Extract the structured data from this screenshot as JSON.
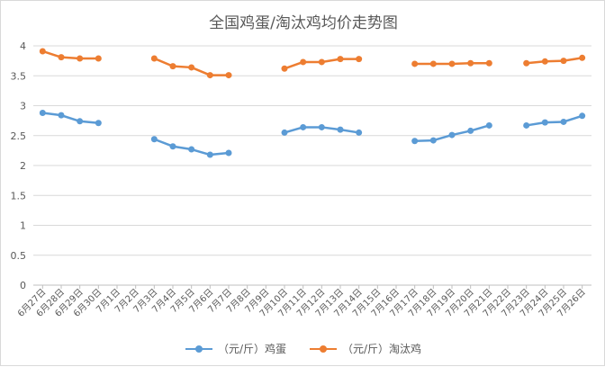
{
  "chart_data": {
    "type": "line",
    "title": "全国鸡蛋/淘汰鸡均价走势图",
    "xlabel": "",
    "ylabel": "",
    "ylim": [
      0,
      4
    ],
    "yticks": [
      "0",
      "0.5",
      "1",
      "1.5",
      "2",
      "2.5",
      "3",
      "3.5",
      "4"
    ],
    "grid": true,
    "legend_position": "bottom",
    "categories": [
      "6月27日",
      "6月28日",
      "6月29日",
      "6月30日",
      "7月1日",
      "7月2日",
      "7月3日",
      "7月4日",
      "7月5日",
      "7月6日",
      "7月7日",
      "7月8日",
      "7月9日",
      "7月10日",
      "7月11日",
      "7月12日",
      "7月13日",
      "7月14日",
      "7月15日",
      "7月16日",
      "7月17日",
      "7月18日",
      "7月19日",
      "7月20日",
      "7月21日",
      "7月22日",
      "7月23日",
      "7月24日",
      "7月25日",
      "7月26日"
    ],
    "series": [
      {
        "name": "（元/斤）鸡蛋",
        "color": "#5b9bd5",
        "values": [
          2.88,
          2.84,
          2.74,
          2.71,
          null,
          null,
          2.44,
          2.32,
          2.27,
          2.18,
          2.21,
          null,
          null,
          2.55,
          2.64,
          2.64,
          2.6,
          2.55,
          null,
          null,
          2.41,
          2.42,
          2.51,
          2.58,
          2.67,
          null,
          2.67,
          2.72,
          2.73,
          2.83
        ]
      },
      {
        "name": "（元/斤）淘汰鸡",
        "color": "#ed7d31",
        "values": [
          3.91,
          3.81,
          3.79,
          3.79,
          null,
          null,
          3.79,
          3.66,
          3.64,
          3.51,
          3.51,
          null,
          null,
          3.62,
          3.73,
          3.73,
          3.78,
          3.78,
          null,
          null,
          3.7,
          3.7,
          3.7,
          3.71,
          3.71,
          null,
          3.71,
          3.74,
          3.75,
          3.8
        ]
      }
    ]
  }
}
